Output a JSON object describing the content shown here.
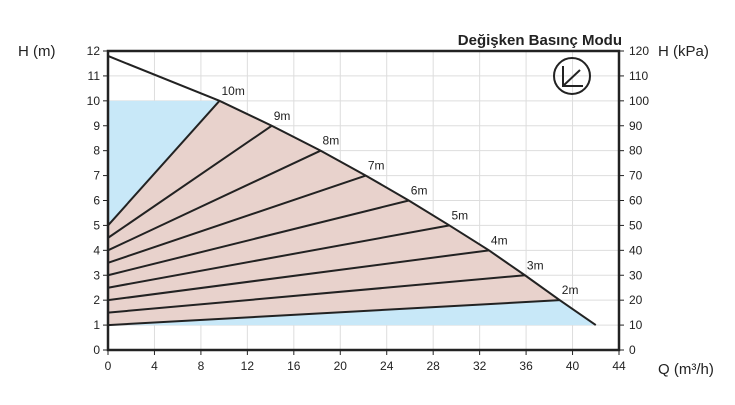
{
  "chart_data": {
    "type": "line",
    "title": "Değişken Basınç Modu",
    "xlabel": "Q (m³/h)",
    "ylabel_left": "H (m)",
    "ylabel_right": "H (kPa)",
    "xlim": [
      0,
      44
    ],
    "ylim": [
      0,
      12
    ],
    "xticks": [
      0,
      4,
      8,
      12,
      16,
      20,
      24,
      28,
      32,
      36,
      40,
      44
    ],
    "yticks": [
      0,
      1,
      2,
      3,
      4,
      5,
      6,
      7,
      8,
      9,
      10,
      11,
      12
    ],
    "yticks_right": [
      0,
      10,
      20,
      30,
      40,
      50,
      60,
      70,
      80,
      90,
      100,
      110,
      120
    ],
    "grid": true,
    "colors": {
      "operating_area": "#c8e8f8",
      "setpoint_area": "#e8d2cc",
      "line": "#222222"
    },
    "max_curve": {
      "x": [
        0,
        9.6,
        14.1,
        18.3,
        22.2,
        25.9,
        29.4,
        32.8,
        35.9,
        38.9,
        42
      ],
      "y": [
        11.8,
        10,
        9,
        8,
        7,
        6,
        5,
        4,
        3,
        2,
        1
      ]
    },
    "series": [
      {
        "name": "10m",
        "x": [
          0,
          9.6
        ],
        "y": [
          5,
          10
        ]
      },
      {
        "name": "9m",
        "x": [
          0,
          14.1
        ],
        "y": [
          4.5,
          9
        ]
      },
      {
        "name": "8m",
        "x": [
          0,
          18.3
        ],
        "y": [
          4,
          8
        ]
      },
      {
        "name": "7m",
        "x": [
          0,
          22.2
        ],
        "y": [
          3.5,
          7
        ]
      },
      {
        "name": "6m",
        "x": [
          0,
          25.9
        ],
        "y": [
          3,
          6
        ]
      },
      {
        "name": "5m",
        "x": [
          0,
          29.4
        ],
        "y": [
          2.5,
          5
        ]
      },
      {
        "name": "4m",
        "x": [
          0,
          32.8
        ],
        "y": [
          2,
          4
        ]
      },
      {
        "name": "3m",
        "x": [
          0,
          35.9
        ],
        "y": [
          1.5,
          3
        ]
      },
      {
        "name": "2m",
        "x": [
          0,
          38.9
        ],
        "y": [
          1,
          2
        ]
      }
    ],
    "icon": "variable-pressure-mode-icon"
  }
}
